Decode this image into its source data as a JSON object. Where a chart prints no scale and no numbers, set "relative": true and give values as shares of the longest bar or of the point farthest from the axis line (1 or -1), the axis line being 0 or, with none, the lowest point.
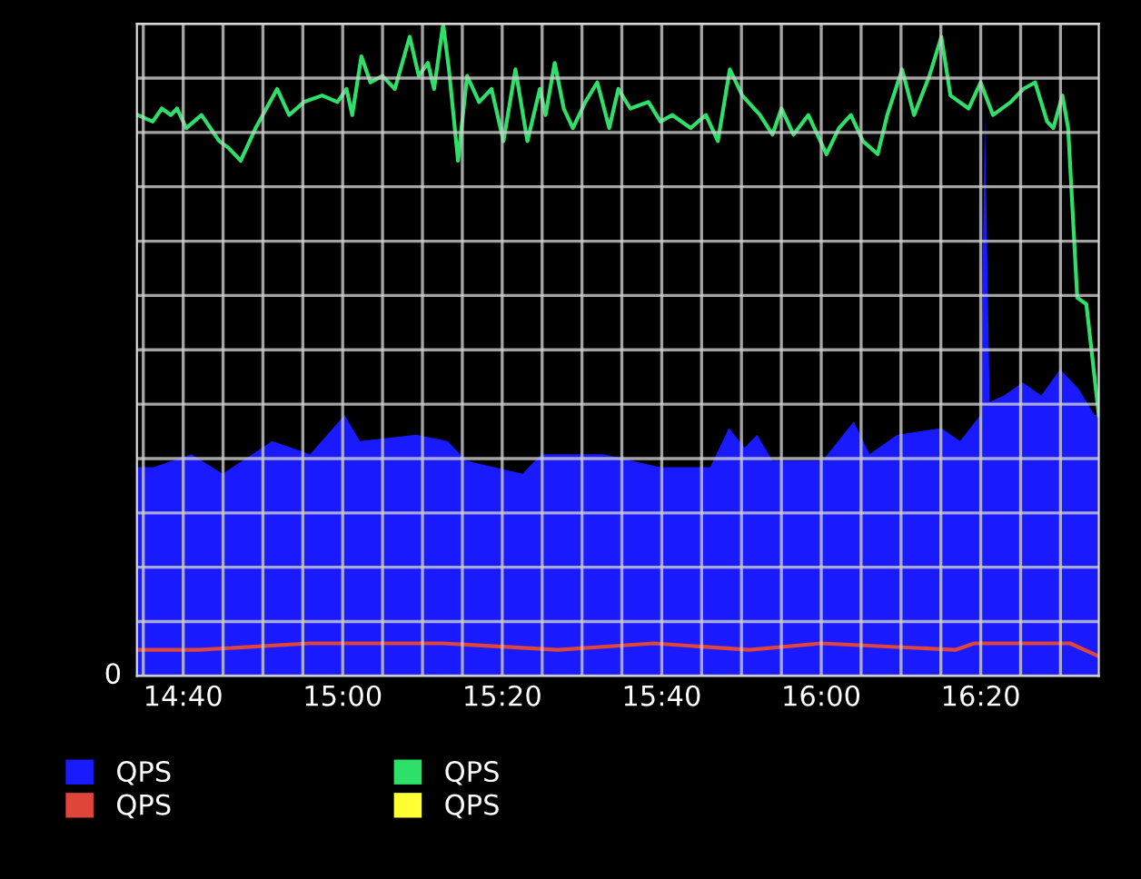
{
  "chart_data": {
    "type": "line",
    "relative": true,
    "grid": true,
    "legend": "bottom",
    "marker": "none",
    "line_style": "solid",
    "xlim": [
      14.57,
      16.58
    ],
    "xticks": [
      {
        "value": 14.5833,
        "label": null
      },
      {
        "value": 14.6667,
        "label": "14:40"
      },
      {
        "value": 14.75,
        "label": null
      },
      {
        "value": 14.8333,
        "label": null
      },
      {
        "value": 14.9167,
        "label": null
      },
      {
        "value": 15.0,
        "label": "15:00"
      },
      {
        "value": 15.0833,
        "label": null
      },
      {
        "value": 15.1667,
        "label": null
      },
      {
        "value": 15.25,
        "label": null
      },
      {
        "value": 15.3333,
        "label": "15:20"
      },
      {
        "value": 15.4167,
        "label": null
      },
      {
        "value": 15.5,
        "label": null
      },
      {
        "value": 15.5833,
        "label": null
      },
      {
        "value": 15.6667,
        "label": "15:40"
      },
      {
        "value": 15.75,
        "label": null
      },
      {
        "value": 15.8333,
        "label": null
      },
      {
        "value": 15.9167,
        "label": null
      },
      {
        "value": 16.0,
        "label": "16:00"
      },
      {
        "value": 16.0833,
        "label": null
      },
      {
        "value": 16.1667,
        "label": null
      },
      {
        "value": 16.25,
        "label": null
      },
      {
        "value": 16.3333,
        "label": "16:20"
      },
      {
        "value": 16.4167,
        "label": null
      },
      {
        "value": 16.5,
        "label": null
      }
    ],
    "annotations": [
      "0"
    ],
    "series": [
      {
        "name": "QPS",
        "type": "area",
        "color": "#1a1aff",
        "x": [
          14.57,
          14.605,
          14.684,
          14.749,
          14.853,
          14.932,
          15.004,
          15.036,
          15.154,
          15.219,
          15.258,
          15.376,
          15.415,
          15.546,
          15.663,
          15.768,
          15.807,
          15.84,
          15.866,
          15.898,
          16.003,
          16.068,
          16.101,
          16.159,
          16.251,
          16.29,
          16.333,
          16.342,
          16.352,
          16.382,
          16.421,
          16.46,
          16.499,
          16.538,
          16.571,
          16.58
        ],
        "values": [
          0.32,
          0.32,
          0.34,
          0.31,
          0.36,
          0.34,
          0.4,
          0.36,
          0.37,
          0.36,
          0.33,
          0.31,
          0.34,
          0.34,
          0.32,
          0.32,
          0.38,
          0.35,
          0.37,
          0.33,
          0.33,
          0.39,
          0.34,
          0.37,
          0.38,
          0.36,
          0.4,
          0.86,
          0.42,
          0.43,
          0.45,
          0.43,
          0.47,
          0.44,
          0.4,
          0.4
        ]
      },
      {
        "name": "QPS",
        "color": "#e0453a",
        "x": [
          14.57,
          14.7,
          14.93,
          15.21,
          15.45,
          15.65,
          15.85,
          16.0,
          16.28,
          16.32,
          16.52,
          16.58
        ],
        "values": [
          0.04,
          0.04,
          0.05,
          0.05,
          0.04,
          0.05,
          0.04,
          0.05,
          0.04,
          0.05,
          0.05,
          0.03
        ]
      },
      {
        "name": "QPS",
        "color": "#2ee06a",
        "x": [
          14.572,
          14.603,
          14.622,
          14.641,
          14.654,
          14.673,
          14.705,
          14.742,
          14.761,
          14.787,
          14.818,
          14.863,
          14.888,
          14.919,
          14.957,
          14.989,
          15.008,
          15.02,
          15.039,
          15.058,
          15.083,
          15.109,
          15.14,
          15.159,
          15.178,
          15.191,
          15.21,
          15.222,
          15.241,
          15.26,
          15.285,
          15.311,
          15.336,
          15.361,
          15.386,
          15.412,
          15.424,
          15.443,
          15.462,
          15.481,
          15.507,
          15.532,
          15.557,
          15.576,
          15.601,
          15.639,
          15.664,
          15.689,
          15.727,
          15.759,
          15.784,
          15.809,
          15.835,
          15.872,
          15.898,
          15.917,
          15.942,
          15.973,
          16.011,
          16.037,
          16.062,
          16.087,
          16.118,
          16.138,
          16.169,
          16.194,
          16.226,
          16.251,
          16.27,
          16.308,
          16.333,
          16.359,
          16.396,
          16.422,
          16.447,
          16.472,
          16.485,
          16.504,
          16.516,
          16.535,
          16.554,
          16.58
        ],
        "values": [
          0.86,
          0.85,
          0.87,
          0.86,
          0.87,
          0.84,
          0.86,
          0.82,
          0.81,
          0.79,
          0.84,
          0.9,
          0.86,
          0.88,
          0.89,
          0.88,
          0.9,
          0.86,
          0.95,
          0.91,
          0.92,
          0.9,
          0.98,
          0.92,
          0.94,
          0.9,
          1.0,
          0.93,
          0.79,
          0.92,
          0.88,
          0.9,
          0.82,
          0.93,
          0.82,
          0.9,
          0.86,
          0.94,
          0.87,
          0.84,
          0.88,
          0.91,
          0.84,
          0.9,
          0.87,
          0.88,
          0.85,
          0.86,
          0.84,
          0.86,
          0.82,
          0.93,
          0.89,
          0.86,
          0.83,
          0.87,
          0.83,
          0.86,
          0.8,
          0.84,
          0.86,
          0.82,
          0.8,
          0.86,
          0.93,
          0.86,
          0.92,
          0.98,
          0.89,
          0.87,
          0.91,
          0.86,
          0.88,
          0.9,
          0.91,
          0.85,
          0.84,
          0.89,
          0.84,
          0.58,
          0.57,
          0.4
        ]
      },
      {
        "name": "QPS",
        "color": "#ffff33"
      }
    ]
  }
}
